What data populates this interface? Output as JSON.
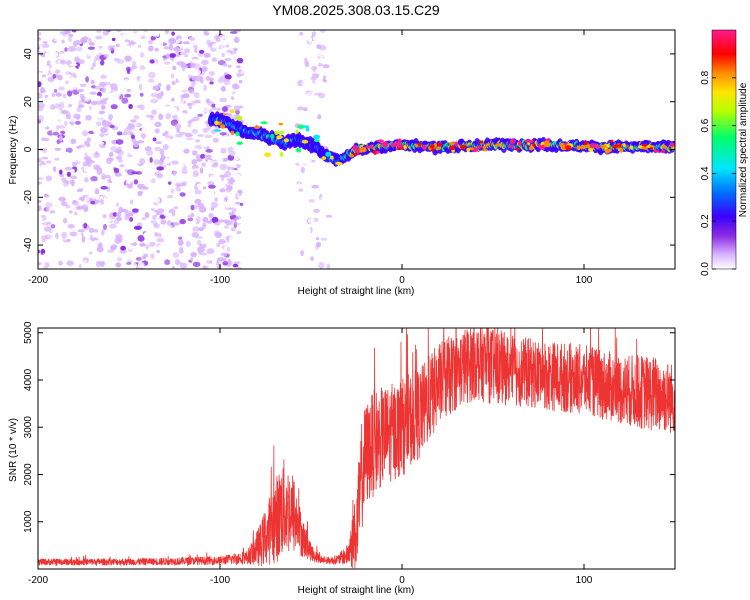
{
  "figure": {
    "title": "YM08.2025.308.03.15.C29"
  },
  "chart_data": [
    {
      "type": "heatmap",
      "name": "spectrogram",
      "xlabel": "Height of straight line (km)",
      "ylabel": "Frequency (Hz)",
      "xlim": [
        -200,
        150
      ],
      "ylim": [
        -50,
        50
      ],
      "xticks": [
        -200,
        -100,
        0,
        100
      ],
      "yticks": [
        40,
        20,
        0,
        -20,
        -40
      ],
      "colorbar": {
        "label": "Normalized spectral amplitude",
        "range": [
          0.0,
          1.0
        ],
        "ticks": [
          "0.0",
          "0.2",
          "0.4",
          "0.6",
          "0.8"
        ],
        "colormap": [
          "#ffffff",
          "#d9b3ff",
          "#8b2be2",
          "#3a00ff",
          "#0070ff",
          "#00e5ff",
          "#00ff6a",
          "#b6ff00",
          "#ffe600",
          "#ff8c00",
          "#ff0000",
          "#ff1a8c"
        ]
      },
      "scatter_noise_regions_km": [
        [
          -200,
          -88
        ],
        [
          -58,
          -40
        ]
      ],
      "signal_track": {
        "x": [
          -105,
          -95,
          -88,
          -80,
          -72,
          -65,
          -58,
          -50,
          -42,
          -35,
          -25,
          -15,
          0,
          20,
          50,
          80,
          110,
          150
        ],
        "freq": [
          13,
          11,
          8,
          7,
          5,
          3,
          4,
          2,
          -2,
          -5,
          0,
          1,
          2,
          1,
          2,
          2,
          1,
          1
        ],
        "amplitude": [
          0.45,
          0.5,
          0.48,
          0.5,
          0.55,
          0.5,
          0.45,
          0.4,
          0.42,
          0.55,
          0.75,
          0.8,
          0.7,
          0.72,
          0.75,
          0.72,
          0.7,
          0.68
        ]
      }
    },
    {
      "type": "line",
      "name": "snr",
      "xlabel": "Height of straight line (km)",
      "ylabel": "SNR (10 * v/v)",
      "xlim": [
        -200,
        150
      ],
      "ylim": [
        0,
        5100
      ],
      "xticks": [
        -200,
        -100,
        0,
        100
      ],
      "yticks": [
        1000,
        2000,
        3000,
        4000,
        5000
      ],
      "line_color": "#ee3333",
      "envelope": {
        "x": [
          -200,
          -150,
          -100,
          -85,
          -78,
          -70,
          -65,
          -60,
          -55,
          -50,
          -45,
          -40,
          -35,
          -30,
          -25,
          -22,
          -20,
          -15,
          -10,
          -5,
          0,
          10,
          20,
          30,
          40,
          50,
          60,
          80,
          100,
          120,
          140,
          150
        ],
        "mean": [
          150,
          150,
          180,
          250,
          500,
          1000,
          1300,
          1200,
          700,
          350,
          200,
          180,
          200,
          300,
          800,
          2000,
          2400,
          2700,
          2800,
          2900,
          3000,
          3300,
          3900,
          4200,
          4400,
          4300,
          4200,
          4100,
          4000,
          3800,
          3700,
          3600
        ],
        "spread": [
          100,
          100,
          120,
          200,
          600,
          1200,
          1400,
          1200,
          600,
          250,
          120,
          100,
          150,
          300,
          1200,
          1600,
          1500,
          1500,
          1400,
          1400,
          1400,
          1300,
          1200,
          1100,
          1100,
          1100,
          1000,
          1000,
          1000,
          1000,
          1100,
          1000
        ]
      }
    }
  ]
}
